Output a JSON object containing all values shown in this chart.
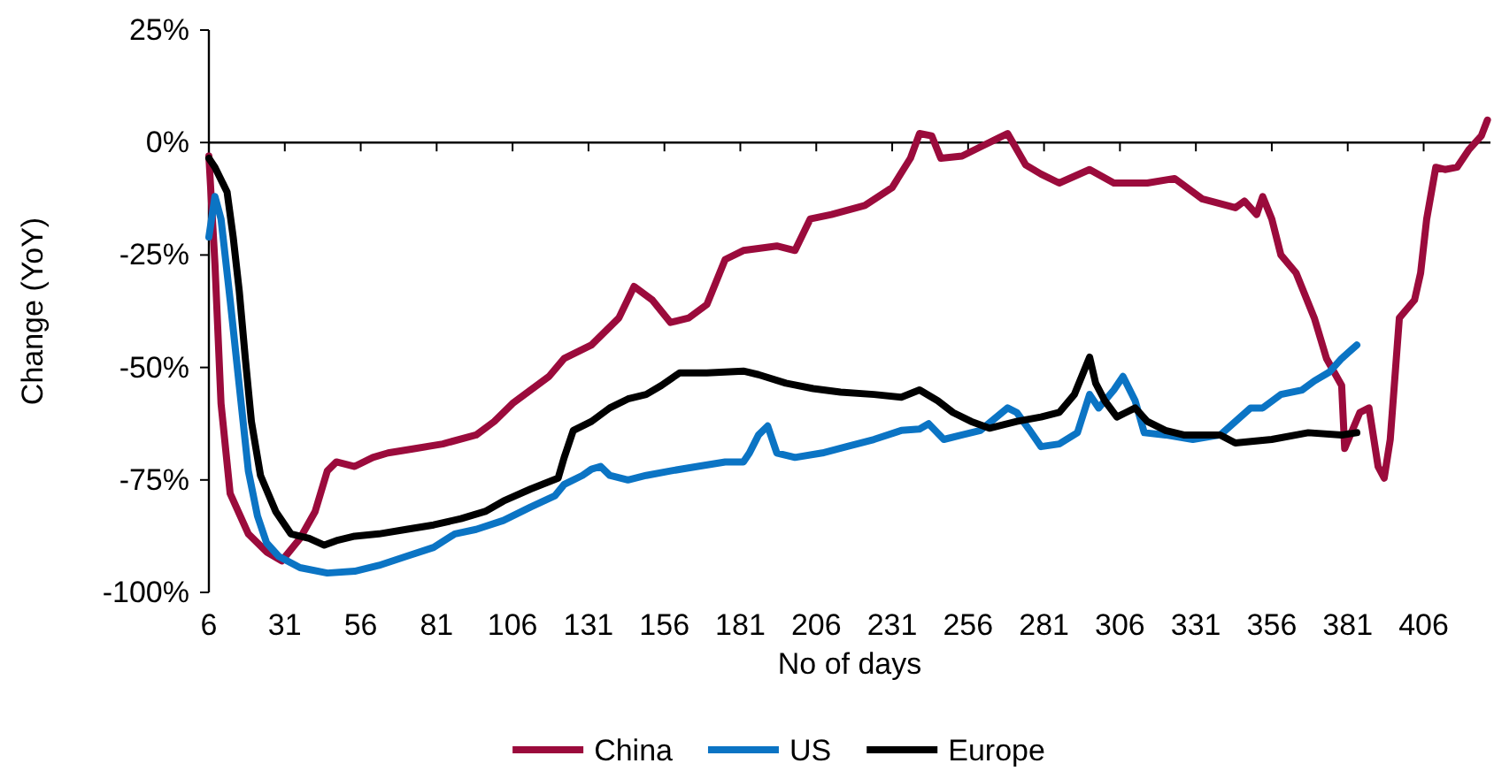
{
  "chart_data": {
    "type": "line",
    "xlabel": "No of days",
    "ylabel": "Change (YoY)",
    "xlim": [
      6,
      428
    ],
    "ylim": [
      -100,
      25
    ],
    "xticks": [
      6,
      31,
      56,
      81,
      106,
      131,
      156,
      181,
      206,
      231,
      256,
      281,
      306,
      331,
      356,
      381,
      406
    ],
    "yticks": [
      {
        "value": 25,
        "label": "25%"
      },
      {
        "value": 0,
        "label": "0%"
      },
      {
        "value": -25,
        "label": "-25%"
      },
      {
        "value": -50,
        "label": "-50%"
      },
      {
        "value": -75,
        "label": "-75%"
      },
      {
        "value": -100,
        "label": "-100%"
      }
    ],
    "legend": "bottom",
    "line_style": "solid",
    "marker": "none",
    "series": [
      {
        "name": "China",
        "color": "#9b0b3c",
        "x": [
          6,
          8,
          10,
          13,
          19,
          25,
          30,
          36,
          41,
          45,
          48,
          54,
          60,
          65,
          74,
          83,
          94,
          100,
          106,
          112,
          118,
          123,
          132,
          141,
          146,
          152,
          158,
          164,
          170,
          176,
          182,
          193,
          199,
          204,
          211,
          222,
          231,
          237,
          240,
          244,
          247,
          254,
          260,
          266,
          269,
          275,
          280,
          286,
          296,
          304,
          315,
          324,
          333,
          344,
          347,
          351,
          353,
          356,
          359,
          364,
          370,
          374,
          379,
          380,
          385,
          388,
          391,
          393,
          395,
          398,
          403,
          405,
          407,
          410,
          413,
          417,
          421,
          425,
          427
        ],
        "values": [
          -3,
          -27,
          -58,
          -78,
          -87,
          -91,
          -93,
          -88,
          -82,
          -73,
          -71,
          -72,
          -70,
          -69,
          -68,
          -67,
          -65,
          -62,
          -58,
          -55,
          -52,
          -48,
          -45,
          -39,
          -32,
          -35,
          -40,
          -39,
          -36,
          -26,
          -24,
          -23,
          -24,
          -17,
          -16,
          -14,
          -10,
          -3.5,
          2,
          1.5,
          -3.5,
          -3,
          -1,
          1,
          2,
          -5,
          -7,
          -9,
          -6,
          -9,
          -9,
          -8,
          -12.5,
          -14.5,
          -13,
          -16,
          -12,
          -17,
          -25,
          -29,
          -39,
          -48,
          -54,
          -68,
          -60,
          -59,
          -72,
          -74.6,
          -66,
          -39,
          -35,
          -29,
          -17,
          -5.5,
          -6,
          -5.5,
          -1.5,
          1.5,
          5
        ]
      },
      {
        "name": "US",
        "color": "#0b74c4",
        "x": [
          6,
          8,
          10,
          13,
          16,
          19,
          22,
          25,
          29,
          36,
          45,
          54,
          62,
          71,
          80,
          87,
          94,
          103,
          112,
          120,
          123,
          129,
          132,
          135,
          138,
          144,
          150,
          158,
          167,
          176,
          182,
          184,
          187,
          190,
          193,
          199,
          208,
          216,
          225,
          234,
          240,
          243,
          248,
          254,
          260,
          269,
          272,
          276,
          280,
          286,
          292,
          296,
          299,
          304,
          307,
          311,
          314,
          321,
          330,
          339,
          344,
          349,
          353,
          359,
          366,
          370,
          375,
          379,
          384
        ],
        "values": [
          -21,
          -12,
          -17,
          -35,
          -54,
          -73,
          -83,
          -89,
          -92,
          -94.5,
          -95.7,
          -95.3,
          -94,
          -92,
          -90,
          -87,
          -86,
          -84,
          -81,
          -78.5,
          -76,
          -74,
          -72.6,
          -72,
          -74,
          -75,
          -74,
          -73,
          -72,
          -71,
          -71,
          -69,
          -65,
          -63,
          -69,
          -70,
          -69,
          -67.6,
          -66,
          -64,
          -63.7,
          -62.5,
          -66,
          -65,
          -64,
          -59,
          -60,
          -63.7,
          -67.6,
          -67,
          -64.5,
          -56,
          -59,
          -55,
          -52,
          -57.4,
          -64.5,
          -65,
          -66,
          -65,
          -62,
          -59,
          -59,
          -56,
          -55,
          -53,
          -51,
          -48,
          -45
        ]
      },
      {
        "name": "Europe",
        "color": "#000000",
        "x": [
          6,
          8,
          12,
          14,
          16,
          18,
          20,
          23,
          28,
          33,
          39,
          44,
          48,
          54,
          62,
          71,
          80,
          89,
          97,
          103,
          112,
          121,
          123,
          126,
          132,
          138,
          144,
          150,
          155,
          161,
          170,
          182,
          187,
          196,
          205,
          214,
          225,
          234,
          240,
          246,
          251,
          257,
          263,
          272,
          280,
          286,
          291,
          296,
          298,
          301,
          305,
          308,
          311,
          315,
          321,
          327,
          339,
          344,
          356,
          368,
          379,
          384
        ],
        "values": [
          -3.5,
          -5.5,
          -11,
          -21,
          -33,
          -48,
          -62,
          -74,
          -82,
          -87,
          -88,
          -89.5,
          -88.5,
          -87.5,
          -87,
          -86,
          -85,
          -83.6,
          -82,
          -79.7,
          -77,
          -74.6,
          -70,
          -64,
          -62,
          -59,
          -57,
          -56,
          -54,
          -51.2,
          -51.2,
          -50.8,
          -51.6,
          -53.5,
          -54.7,
          -55.5,
          -56,
          -56.6,
          -55,
          -57.4,
          -60,
          -62,
          -63.5,
          -62,
          -61,
          -60,
          -56,
          -47.7,
          -53.5,
          -57.4,
          -61,
          -60,
          -59,
          -62,
          -64,
          -65,
          -65,
          -66.8,
          -66,
          -64.5,
          -65,
          -64.5
        ]
      }
    ]
  }
}
